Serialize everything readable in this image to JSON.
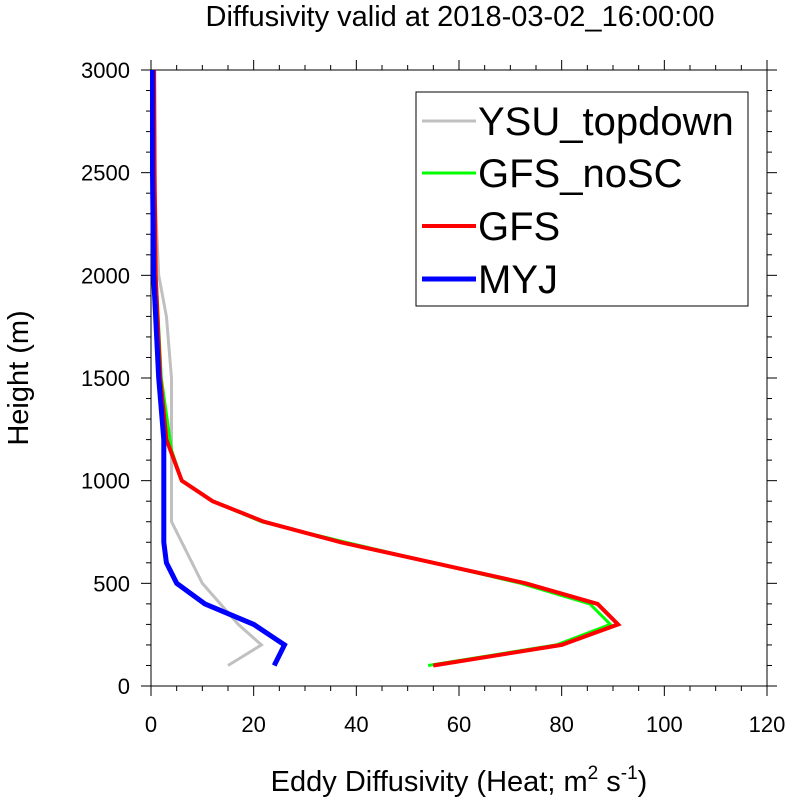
{
  "chart_data": {
    "type": "line",
    "title": "Diffusivity valid at 2018-03-02_16:00:00",
    "xlabel": "Eddy Diffusivity (Heat; m",
    "xlabel_sup1": "2",
    "xlabel_mid": " s",
    "xlabel_sup2": "-1",
    "xlabel_end": ")",
    "ylabel": "Height (m)",
    "xlim": [
      0,
      120
    ],
    "ylim": [
      0,
      3000
    ],
    "x_ticks": [
      "0",
      "20",
      "40",
      "60",
      "80",
      "100",
      "120"
    ],
    "y_ticks": [
      "0",
      "500",
      "1000",
      "1500",
      "2000",
      "2500",
      "3000"
    ],
    "grid": false,
    "legend_placement": "top-right",
    "series": [
      {
        "name": "YSU_topdown",
        "color": "#c0c0c0",
        "points": [
          [
            15,
            100
          ],
          [
            21.5,
            200
          ],
          [
            17,
            300
          ],
          [
            10,
            500
          ],
          [
            6,
            700
          ],
          [
            4,
            800
          ],
          [
            4,
            1000
          ],
          [
            4,
            1200
          ],
          [
            4,
            1500
          ],
          [
            3,
            1800
          ],
          [
            1.5,
            2000
          ],
          [
            0.6,
            2500
          ],
          [
            0.3,
            3000
          ]
        ]
      },
      {
        "name": "GFS_noSC",
        "color": "#00ff00",
        "points": [
          [
            54,
            100
          ],
          [
            79,
            200
          ],
          [
            89.5,
            300
          ],
          [
            85.5,
            400
          ],
          [
            72,
            500
          ],
          [
            38,
            700
          ],
          [
            21.5,
            800
          ],
          [
            12,
            900
          ],
          [
            6,
            1000
          ],
          [
            4,
            1150
          ],
          [
            2,
            1500
          ],
          [
            1,
            2000
          ],
          [
            0.6,
            2500
          ],
          [
            0.5,
            3000
          ]
        ]
      },
      {
        "name": "GFS",
        "color": "#ff0000",
        "points": [
          [
            55,
            100
          ],
          [
            80,
            200
          ],
          [
            91,
            300
          ],
          [
            87,
            400
          ],
          [
            73,
            500
          ],
          [
            37,
            700
          ],
          [
            22,
            800
          ],
          [
            12,
            900
          ],
          [
            6,
            1000
          ],
          [
            3,
            1200
          ],
          [
            1.8,
            1500
          ],
          [
            0.9,
            2000
          ],
          [
            0.7,
            2500
          ],
          [
            0.6,
            3000
          ]
        ]
      },
      {
        "name": "MYJ",
        "color": "#0000ff",
        "points": [
          [
            24,
            100
          ],
          [
            26,
            200
          ],
          [
            20,
            300
          ],
          [
            10.5,
            400
          ],
          [
            5,
            500
          ],
          [
            3,
            600
          ],
          [
            2.5,
            700
          ],
          [
            2.5,
            1000
          ],
          [
            2.5,
            1200
          ],
          [
            1.5,
            1500
          ],
          [
            0.5,
            2000
          ],
          [
            0.3,
            2500
          ],
          [
            0.3,
            3000
          ]
        ]
      }
    ]
  }
}
